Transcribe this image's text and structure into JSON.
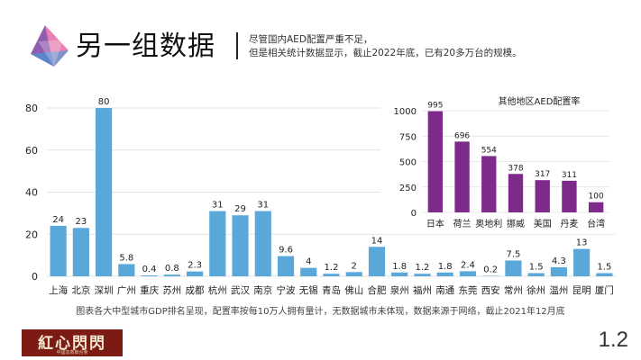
{
  "header": {
    "title": "另一组数据",
    "subtitle_lines": [
      "尽管国内AED配置严重不足，",
      "但是相关统计数据显示，截止2022年底，已有20多万台的规模。"
    ]
  },
  "chart_data": [
    {
      "type": "bar",
      "title": "",
      "xlabel": "",
      "ylabel": "",
      "ylim": [
        0,
        80
      ],
      "yticks": [
        0,
        20,
        40,
        60,
        80
      ],
      "grid": true,
      "color": "#5aa7d9",
      "categories": [
        "上海",
        "北京",
        "深圳",
        "广州",
        "重庆",
        "苏州",
        "成都",
        "杭州",
        "武汉",
        "南京",
        "宁波",
        "无锡",
        "青岛",
        "佛山",
        "合肥",
        "泉州",
        "福州",
        "南通",
        "东莞",
        "西安",
        "常州",
        "徐州",
        "温州",
        "昆明",
        "厦门"
      ],
      "values": [
        24,
        23,
        80,
        5.8,
        0.4,
        0.8,
        2.3,
        31,
        29,
        31,
        9.6,
        4,
        1.2,
        2,
        14,
        1.8,
        1.2,
        1.8,
        2.4,
        0.2,
        7.5,
        1.5,
        4.3,
        13,
        1.5
      ],
      "value_labels": [
        "24",
        "23",
        "80",
        "5.8",
        "0.4",
        "0.8",
        "2.3",
        "31",
        "29",
        "31",
        "9.6",
        "4",
        "1.2",
        "2",
        "14",
        "1.8",
        "1.2",
        "1.8",
        "2.4",
        "0.2",
        "7.5",
        "1.5",
        "4.3",
        "13",
        "1.5"
      ]
    },
    {
      "type": "bar",
      "title": "其他地区AED配置率",
      "xlabel": "",
      "ylabel": "",
      "ylim": [
        0,
        1000
      ],
      "yticks": [
        0,
        250,
        500,
        750,
        1000
      ],
      "grid": true,
      "color": "#7d2a8a",
      "categories": [
        "日本",
        "荷兰",
        "奥地利",
        "挪威",
        "美国",
        "丹麦",
        "台湾"
      ],
      "values": [
        995,
        696,
        554,
        378,
        317,
        311,
        100
      ]
    }
  ],
  "footnote": "图表各大中型城市GDP排名呈现，配置率按每10万人拥有量计，无数据城市未体现，数据来源于网络，截止2021年12月底",
  "brand": {
    "name": "紅心閃閃",
    "tagline": "中國急救聯合會"
  },
  "page_number": "1.2"
}
